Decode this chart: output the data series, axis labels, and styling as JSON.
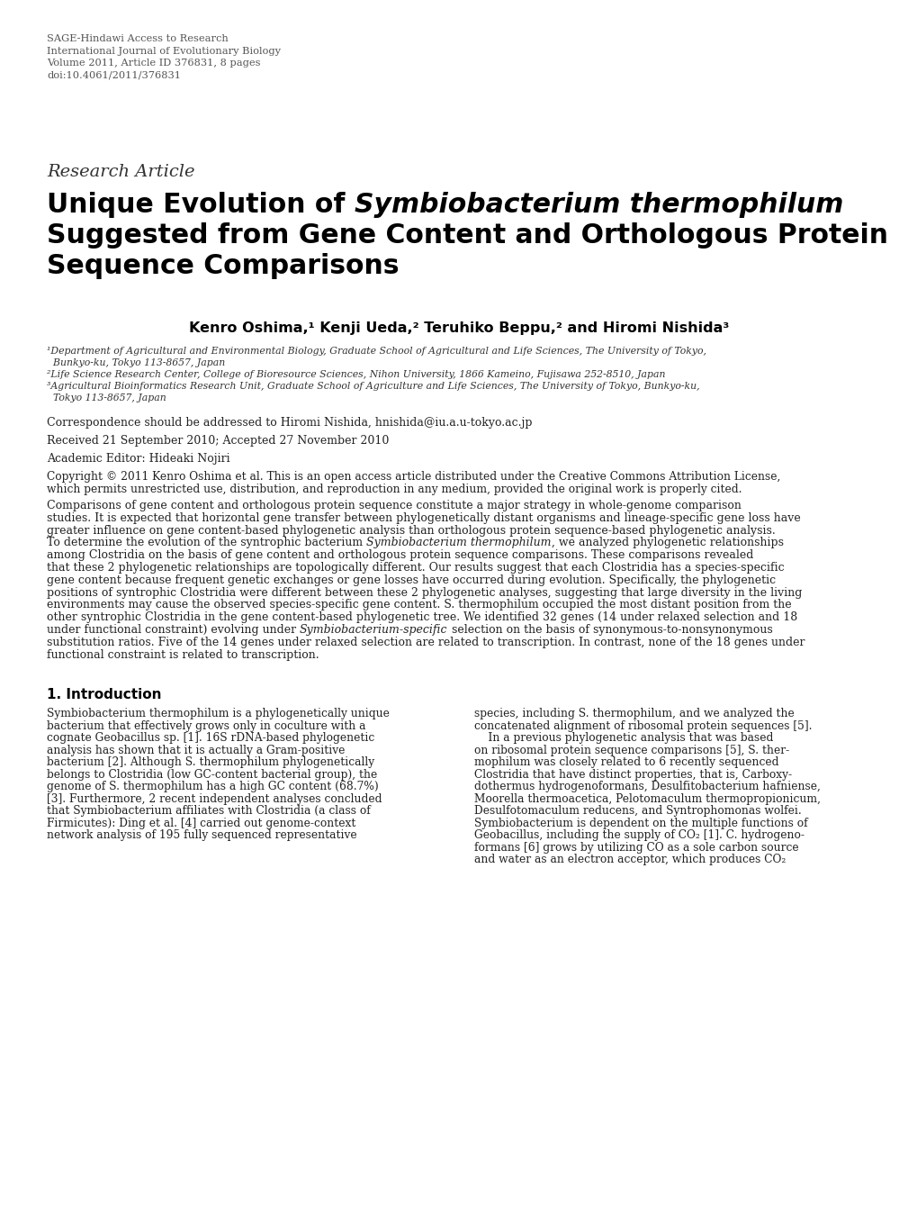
{
  "background_color": "#ffffff",
  "header_lines": [
    "SAGE-Hindawi Access to Research",
    "International Journal of Evolutionary Biology",
    "Volume 2011, Article ID 376831, 8 pages",
    "doi:10.4061/2011/376831"
  ],
  "research_article_label": "Research Article",
  "title_line1_before_italic": "Unique Evolution of ",
  "title_line1_italic": "Symbiobacterium thermophilum",
  "title_line2": "Suggested from Gene Content and Orthologous Protein",
  "title_line3": "Sequence Comparisons",
  "authors": "Kenro Oshima,¹ Kenji Ueda,² Teruhiko Beppu,² and Hiromi Nishida³",
  "aff1_line1": "¹Department of Agricultural and Environmental Biology, Graduate School of Agricultural and Life Sciences, The University of Tokyo,",
  "aff1_line2": "  Bunkyo-ku, Tokyo 113-8657, Japan",
  "aff2": "²Life Science Research Center, College of Bioresource Sciences, Nihon University, 1866 Kameino, Fujisawa 252-8510, Japan",
  "aff3_line1": "³Agricultural Bioinformatics Research Unit, Graduate School of Agriculture and Life Sciences, The University of Tokyo, Bunkyo-ku,",
  "aff3_line2": "  Tokyo 113-8657, Japan",
  "correspondence": "Correspondence should be addressed to Hiromi Nishida, hnishida@iu.a.u-tokyo.ac.jp",
  "received": "Received 21 September 2010; Accepted 27 November 2010",
  "academic_editor": "Academic Editor: Hideaki Nojiri",
  "copyright_line1": "Copyright © 2011 Kenro Oshima et al. This is an open access article distributed under the Creative Commons Attribution License,",
  "copyright_line2": "which permits unrestricted use, distribution, and reproduction in any medium, provided the original work is properly cited.",
  "abstract_lines": [
    "Comparisons of gene content and orthologous protein sequence constitute a major strategy in whole-genome comparison",
    "studies. It is expected that horizontal gene transfer between phylogenetically distant organisms and lineage-specific gene loss have",
    "greater influence on gene content-based phylogenetic analysis than orthologous protein sequence-based phylogenetic analysis.",
    "To determine the evolution of the syntrophic bacterium Symbiobacterium thermophilum, we analyzed phylogenetic relationships",
    "among Clostridia on the basis of gene content and orthologous protein sequence comparisons. These comparisons revealed",
    "that these 2 phylogenetic relationships are topologically different. Our results suggest that each Clostridia has a species-specific",
    "gene content because frequent genetic exchanges or gene losses have occurred during evolution. Specifically, the phylogenetic",
    "positions of syntrophic Clostridia were different between these 2 phylogenetic analyses, suggesting that large diversity in the living",
    "environments may cause the observed species-specific gene content. S. thermophilum occupied the most distant position from the",
    "other syntrophic Clostridia in the gene content-based phylogenetic tree. We identified 32 genes (14 under relaxed selection and 18",
    "under functional constraint) evolving under Symbiobacterium-specific selection on the basis of synonymous-to-nonsynonymous",
    "substitution ratios. Five of the 14 genes under relaxed selection are related to transcription. In contrast, none of the 18 genes under",
    "functional constraint is related to transcription."
  ],
  "section1_title": "1. Introduction",
  "col1_lines": [
    "Symbiobacterium thermophilum is a phylogenetically unique",
    "bacterium that effectively grows only in coculture with a",
    "cognate Geobacillus sp. [1]. 16S rDNA-based phylogenetic",
    "analysis has shown that it is actually a Gram-positive",
    "bacterium [2]. Although S. thermophilum phylogenetically",
    "belongs to Clostridia (low GC-content bacterial group), the",
    "genome of S. thermophilum has a high GC content (68.7%)",
    "[3]. Furthermore, 2 recent independent analyses concluded",
    "that Symbiobacterium affiliates with Clostridia (a class of",
    "Firmicutes): Ding et al. [4] carried out genome-context",
    "network analysis of 195 fully sequenced representative"
  ],
  "col2_lines": [
    "species, including S. thermophilum, and we analyzed the",
    "concatenated alignment of ribosomal protein sequences [5].",
    "    In a previous phylogenetic analysis that was based",
    "on ribosomal protein sequence comparisons [5], S. ther-",
    "mophilum was closely related to 6 recently sequenced",
    "Clostridia that have distinct properties, that is, Carboxy-",
    "dothermus hydrogenoformans, Desulfitobacterium hafniense,",
    "Moorella thermoacetica, Pelotomaculum thermopropionicum,",
    "Desulfotomaculum reducens, and Syntrophomonas wolfei.",
    "Symbiobacterium is dependent on the multiple functions of",
    "Geobacillus, including the supply of CO₂ [1]. C. hydrogeno-",
    "formans [6] grows by utilizing CO as a sole carbon source",
    "and water as an electron acceptor, which produces CO₂"
  ],
  "header_color": "#555555",
  "text_color": "#222222",
  "title_color": "#000000",
  "section_title_color": "#000000"
}
